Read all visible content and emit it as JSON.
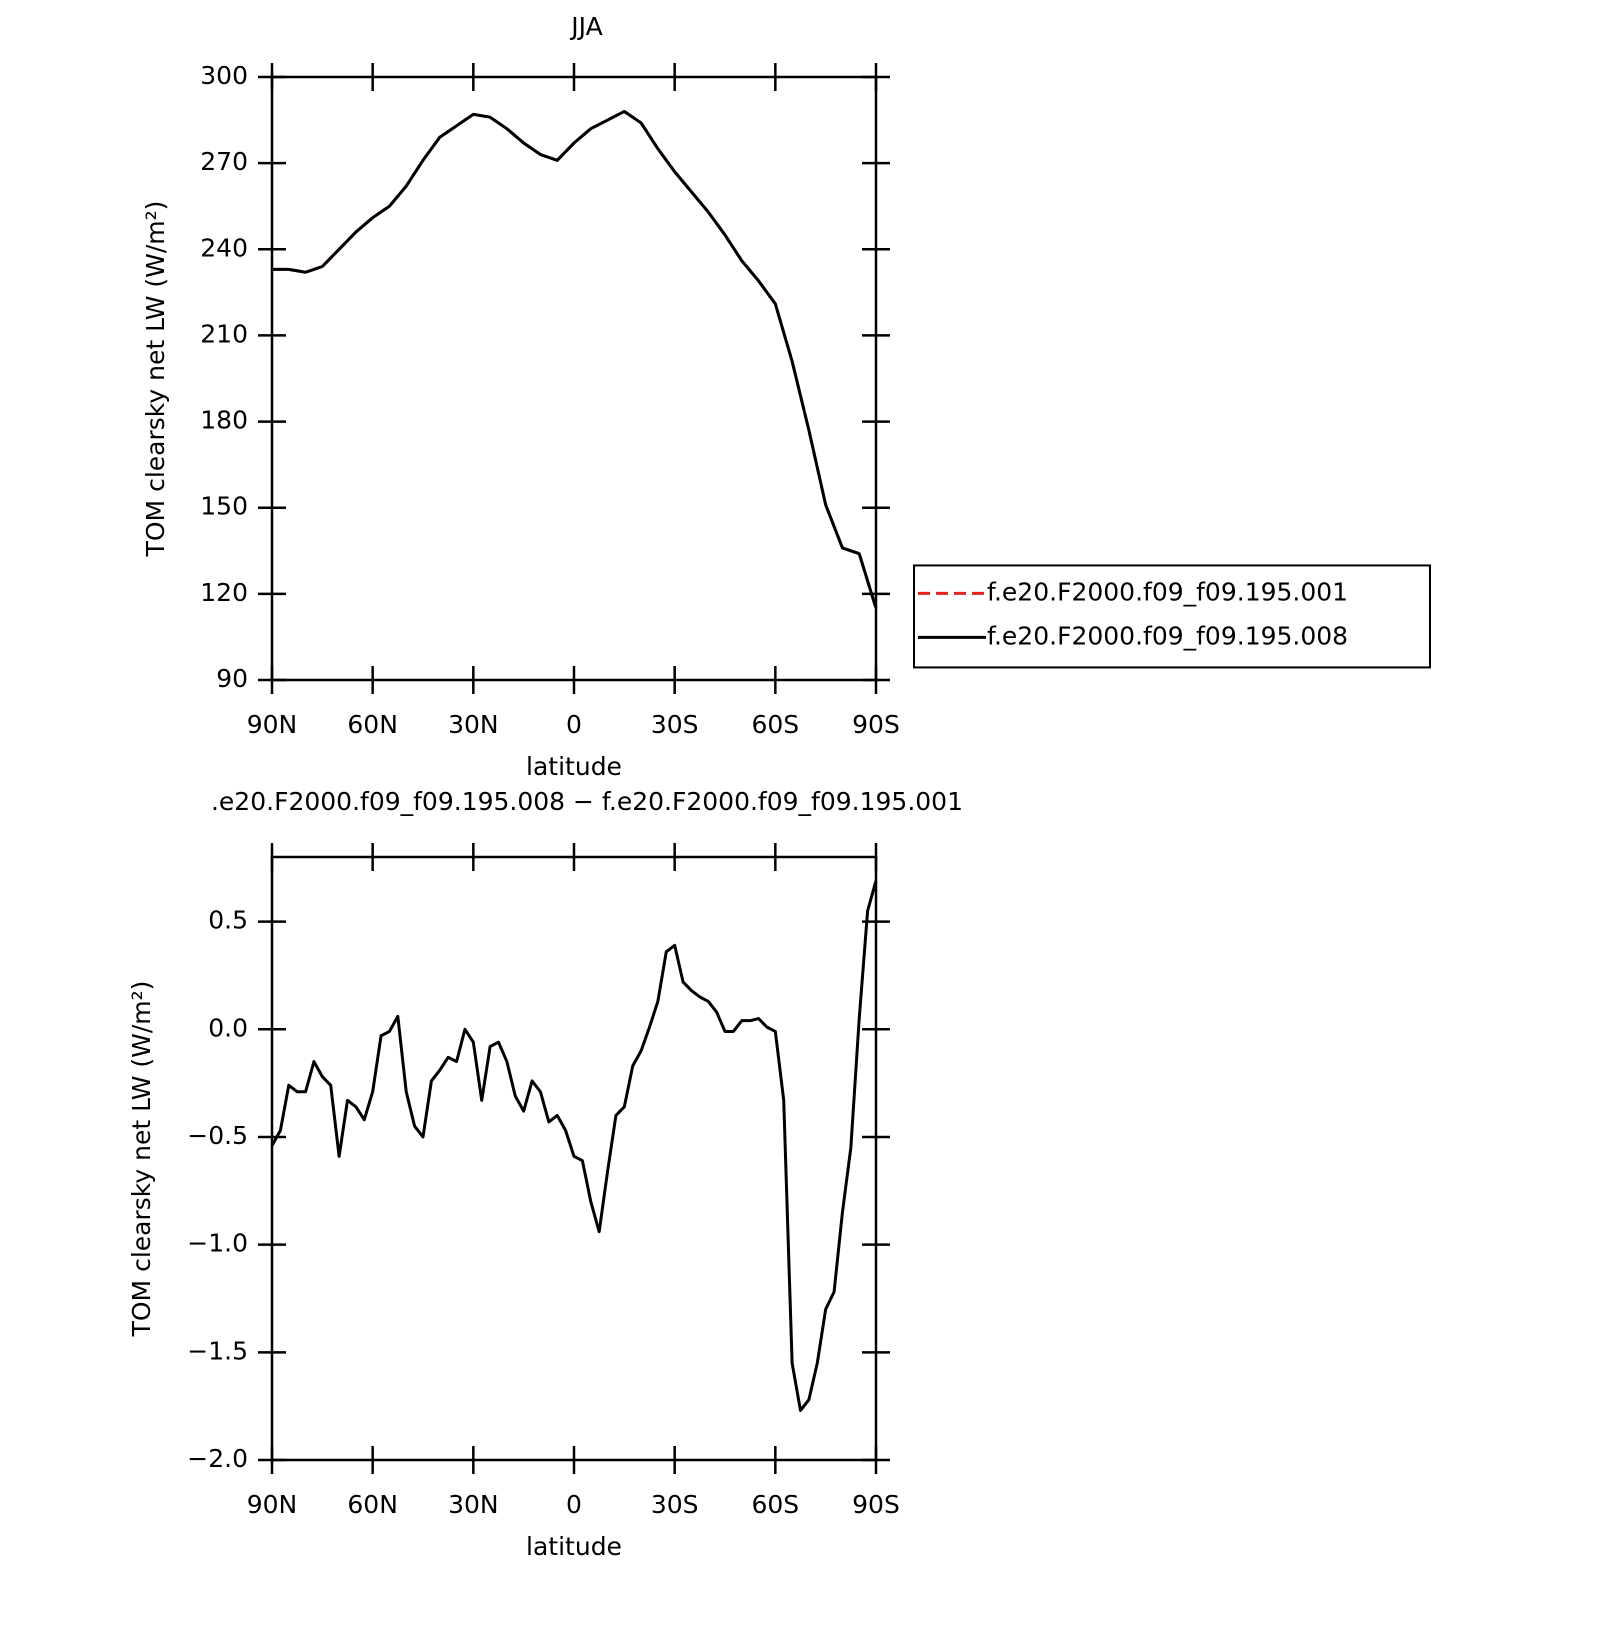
{
  "chart_data": [
    {
      "type": "line",
      "title": "JJA",
      "x_label": "latitude",
      "y_label": "TOM clearsky net LW (W/m²)",
      "x": [
        90,
        85,
        80,
        75,
        70,
        65,
        60,
        55,
        50,
        45,
        40,
        35,
        30,
        25,
        20,
        15,
        10,
        5,
        0,
        -5,
        -10,
        -15,
        -20,
        -25,
        -30,
        -35,
        -40,
        -45,
        -50,
        -55,
        -60,
        -65,
        -70,
        -75,
        -80,
        -85,
        -90
      ],
      "series": [
        {
          "name": "f.e20.F2000.f09_f09.195.001",
          "color": "#e8221e",
          "linestyle": "dashed",
          "values": [
            233,
            233,
            232,
            234,
            240,
            246,
            251,
            255,
            262,
            271,
            279,
            283,
            287,
            286,
            282,
            277,
            273,
            271,
            277,
            282,
            285,
            288,
            284,
            275,
            267,
            260,
            253,
            245,
            236,
            229,
            221,
            201,
            177,
            151,
            136,
            134,
            115
          ]
        },
        {
          "name": "f.e20.F2000.f09_f09.195.008",
          "color": "#000000",
          "linestyle": "solid",
          "values": [
            233,
            233,
            232,
            234,
            240,
            246,
            251,
            255,
            262,
            271,
            279,
            283,
            287,
            286,
            282,
            277,
            273,
            271,
            277,
            282,
            285,
            288,
            284,
            275,
            267,
            260,
            253,
            245,
            236,
            229,
            221,
            201,
            177,
            151,
            136,
            134,
            115
          ]
        }
      ],
      "xlim": [
        90,
        -90
      ],
      "xticks": [
        {
          "value": 90,
          "label": "90N"
        },
        {
          "value": 60,
          "label": "60N"
        },
        {
          "value": 30,
          "label": "30N"
        },
        0,
        {
          "value": -30,
          "label": "30S"
        },
        {
          "value": -60,
          "label": "60S"
        },
        {
          "value": -90,
          "label": "90S"
        }
      ],
      "ylim": [
        90,
        300
      ],
      "yticks": [
        90,
        120,
        150,
        180,
        210,
        240,
        270,
        300
      ],
      "legend": "right"
    },
    {
      "type": "line",
      "title": ".e20.F2000.f09_f09.195.008 − f.e20.F2000.f09_f09.195.001",
      "x_label": "latitude",
      "y_label": "TOM clearsky net LW (W/m²)",
      "x": [
        90,
        87.5,
        85,
        82.5,
        80,
        77.5,
        75,
        72.5,
        70,
        67.5,
        65,
        62.5,
        60,
        57.5,
        55,
        52.5,
        50,
        47.5,
        45,
        42.5,
        40,
        37.5,
        35,
        32.5,
        30,
        27.5,
        25,
        22.5,
        20,
        17.5,
        15,
        12.5,
        10,
        7.5,
        5,
        2.5,
        0,
        -2.5,
        -5,
        -7.5,
        -10,
        -12.5,
        -15,
        -17.5,
        -20,
        -22.5,
        -25,
        -27.5,
        -30,
        -32.5,
        -35,
        -37.5,
        -40,
        -42.5,
        -45,
        -47.5,
        -50,
        -52.5,
        -55,
        -57.5,
        -60,
        -62.5,
        -65,
        -67.5,
        -70,
        -72.5,
        -75,
        -77.5,
        -80,
        -82.5,
        -85,
        -87.5,
        -90
      ],
      "color": "#000000",
      "values": [
        -0.54,
        -0.47,
        -0.26,
        -0.29,
        -0.29,
        -0.15,
        -0.22,
        -0.26,
        -0.59,
        -0.33,
        -0.36,
        -0.42,
        -0.29,
        -0.03,
        -0.01,
        0.06,
        -0.29,
        -0.45,
        -0.5,
        -0.24,
        -0.19,
        -0.13,
        -0.15,
        0.0,
        -0.06,
        -0.33,
        -0.08,
        -0.06,
        -0.15,
        -0.31,
        -0.38,
        -0.24,
        -0.29,
        -0.43,
        -0.4,
        -0.47,
        -0.59,
        -0.61,
        -0.8,
        -0.94,
        -0.66,
        -0.4,
        -0.36,
        -0.17,
        -0.1,
        0.01,
        0.13,
        0.36,
        0.39,
        0.22,
        0.18,
        0.15,
        0.13,
        0.08,
        -0.01,
        -0.01,
        0.04,
        0.04,
        0.05,
        0.01,
        -0.01,
        -0.33,
        -1.55,
        -1.77,
        -1.72,
        -1.55,
        -1.3,
        -1.22,
        -0.85,
        -0.55,
        0.05,
        0.55,
        0.69
      ],
      "xlim": [
        90,
        -90
      ],
      "xticks": [
        {
          "value": 90,
          "label": "90N"
        },
        {
          "value": 60,
          "label": "60N"
        },
        {
          "value": 30,
          "label": "30N"
        },
        0,
        {
          "value": -30,
          "label": "30S"
        },
        {
          "value": -60,
          "label": "60S"
        },
        {
          "value": -90,
          "label": "90S"
        }
      ],
      "ylim": [
        -2.0,
        0.8
      ],
      "yticks": [
        {
          "value": -2.0,
          "label": "−2.0"
        },
        {
          "value": -1.5,
          "label": "−1.5"
        },
        {
          "value": -1.0,
          "label": "−1.0"
        },
        {
          "value": -0.5,
          "label": "−0.5"
        },
        {
          "value": 0.0,
          "label": "0.0"
        },
        0.5
      ]
    }
  ]
}
